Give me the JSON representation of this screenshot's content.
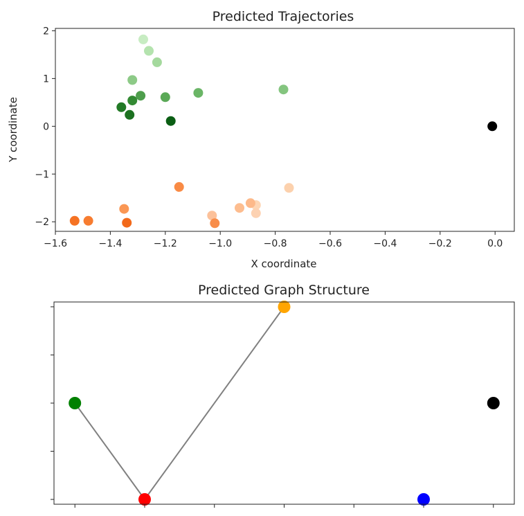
{
  "chart_data": [
    {
      "type": "scatter",
      "title": "Predicted Trajectories",
      "xlabel": "X coordinate",
      "ylabel": "Y coordinate",
      "xlim": [
        -1.6,
        0.07
      ],
      "ylim": [
        -2.2,
        2.05
      ],
      "x_ticks": [
        -1.6,
        -1.4,
        -1.2,
        -1.0,
        -0.8,
        -0.6,
        -0.4,
        -0.2,
        0.0
      ],
      "x_tick_labels": [
        "−1.6",
        "−1.4",
        "−1.2",
        "−1.0",
        "−0.8",
        "−0.6",
        "−0.4",
        "−0.2",
        "0.0"
      ],
      "y_ticks": [
        2,
        1,
        0,
        -1,
        -2
      ],
      "y_tick_labels": [
        "2",
        "1",
        "0",
        "−1",
        "−2"
      ],
      "grid": false,
      "series": [
        {
          "color_family": "green",
          "points": [
            {
              "x": -1.28,
              "y": 1.82,
              "color": "#c7ecc2"
            },
            {
              "x": -1.26,
              "y": 1.58,
              "color": "#b4e3ae"
            },
            {
              "x": -1.23,
              "y": 1.34,
              "color": "#a4d99d"
            },
            {
              "x": -1.32,
              "y": 0.97,
              "color": "#8dca87"
            },
            {
              "x": -0.77,
              "y": 0.77,
              "color": "#84c57f"
            },
            {
              "x": -1.08,
              "y": 0.7,
              "color": "#6ab566"
            },
            {
              "x": -1.29,
              "y": 0.64,
              "color": "#4e9e4c"
            },
            {
              "x": -1.2,
              "y": 0.61,
              "color": "#5ba957"
            },
            {
              "x": -1.32,
              "y": 0.54,
              "color": "#338a33"
            },
            {
              "x": -1.36,
              "y": 0.4,
              "color": "#227a26"
            },
            {
              "x": -1.33,
              "y": 0.24,
              "color": "#1c7120"
            },
            {
              "x": -1.18,
              "y": 0.11,
              "color": "#0b5e14"
            }
          ]
        },
        {
          "color_family": "orange",
          "points": [
            {
              "x": -0.75,
              "y": -1.29,
              "color": "#fcd1ad"
            },
            {
              "x": -0.87,
              "y": -1.65,
              "color": "#fdd6b5"
            },
            {
              "x": -0.87,
              "y": -1.82,
              "color": "#fdd2b2"
            },
            {
              "x": -0.89,
              "y": -1.61,
              "color": "#fdb98a"
            },
            {
              "x": -0.93,
              "y": -1.71,
              "color": "#fdbd8f"
            },
            {
              "x": -1.03,
              "y": -1.87,
              "color": "#fcc19a"
            },
            {
              "x": -1.02,
              "y": -2.03,
              "color": "#f88d4a"
            },
            {
              "x": -1.15,
              "y": -1.27,
              "color": "#f98b45"
            },
            {
              "x": -1.35,
              "y": -1.73,
              "color": "#fa9754"
            },
            {
              "x": -1.53,
              "y": -1.98,
              "color": "#f57223"
            },
            {
              "x": -1.48,
              "y": -1.98,
              "color": "#f77c30"
            },
            {
              "x": -1.34,
              "y": -2.02,
              "color": "#f2691a"
            }
          ]
        },
        {
          "color_family": "black",
          "points": [
            {
              "x": -0.01,
              "y": 0.0,
              "color": "#000000"
            }
          ]
        }
      ]
    },
    {
      "type": "scatter",
      "subtype": "graph",
      "title": "Predicted Graph Structure",
      "xlim": [
        -0.3,
        6.3
      ],
      "ylim": [
        -0.1,
        4.1
      ],
      "x_ticks": [
        0,
        1,
        2,
        3,
        4,
        5,
        6
      ],
      "y_ticks": [
        0,
        1,
        2,
        3,
        4
      ],
      "tick_labels_shown": false,
      "grid": false,
      "nodes": [
        {
          "id": "green",
          "x": 0,
          "y": 2,
          "color": "#008000"
        },
        {
          "id": "red",
          "x": 1,
          "y": 0,
          "color": "#ff0000"
        },
        {
          "id": "orange",
          "x": 3,
          "y": 4,
          "color": "#ffa500"
        },
        {
          "id": "blue",
          "x": 5,
          "y": 0,
          "color": "#0000ff"
        },
        {
          "id": "black",
          "x": 6,
          "y": 2,
          "color": "#000000"
        }
      ],
      "edges": [
        {
          "from": "green",
          "to": "red",
          "color": "#808080"
        },
        {
          "from": "red",
          "to": "orange",
          "color": "#808080"
        }
      ]
    }
  ]
}
